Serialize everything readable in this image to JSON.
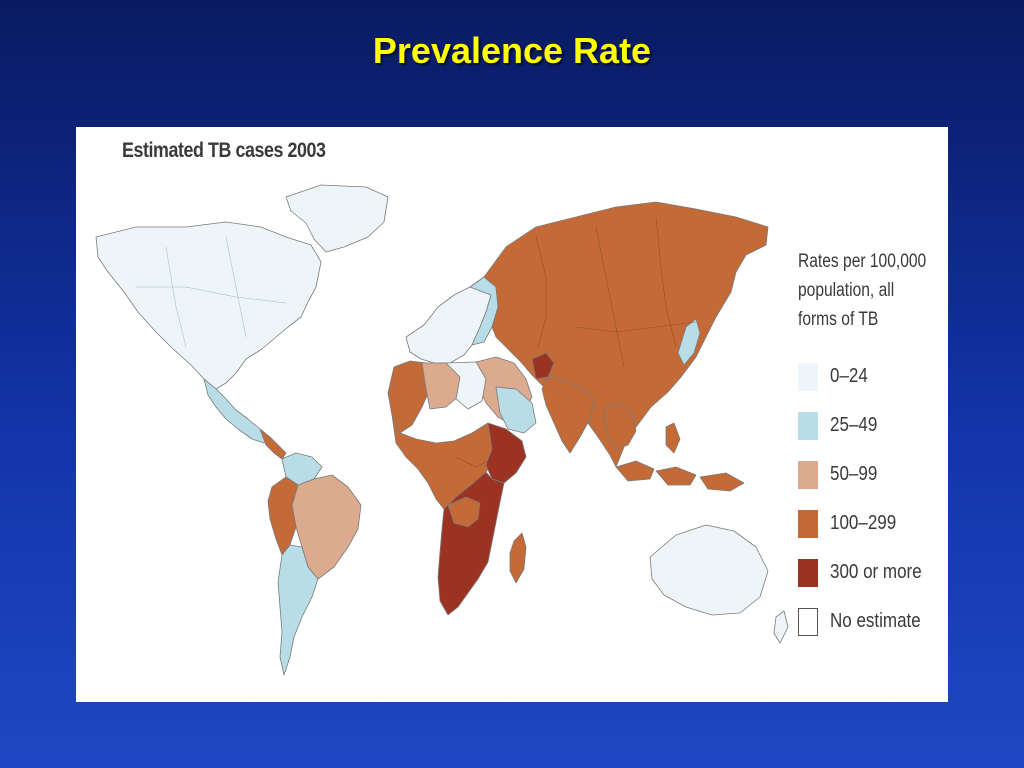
{
  "slide": {
    "title": "Prevalence Rate"
  },
  "map": {
    "heading": "Estimated TB cases 2003",
    "legend": {
      "title": "Rates per 100,000\npopulation, all\nforms of TB",
      "items": [
        {
          "label": "0–24",
          "color": "#eef5f8",
          "border": "#eef5f8"
        },
        {
          "label": "25–49",
          "color": "#b9dde6",
          "border": "#b9dde6"
        },
        {
          "label": "50–99",
          "color": "#dcaa8e",
          "border": "#dcaa8e"
        },
        {
          "label": "100–299",
          "color": "#c46a37",
          "border": "#c46a37"
        },
        {
          "label": "300 or more",
          "color": "#9c3322",
          "border": "#9c3322"
        },
        {
          "label": "No estimate",
          "color": "#ffffff",
          "border": "#555555"
        }
      ]
    }
  }
}
